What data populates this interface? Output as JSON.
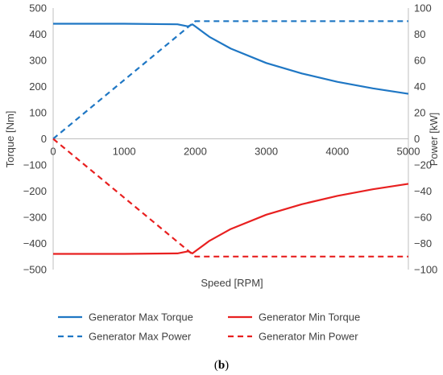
{
  "chart_data": {
    "type": "line",
    "xlabel": "Speed [RPM]",
    "ylabel_left": "Torque [Nm]",
    "ylabel_right": "Power [kW]",
    "xlim": [
      0,
      5000
    ],
    "ylim_left": [
      -500,
      500
    ],
    "ylim_right": [
      -100,
      100
    ],
    "x_ticks": [
      "0",
      "1000",
      "2000",
      "3000",
      "4000",
      "5000"
    ],
    "y_ticks_left": [
      "500",
      "400",
      "300",
      "200",
      "100",
      "0",
      "−100",
      "−200",
      "−300",
      "−400",
      "−500"
    ],
    "y_ticks_right": [
      "100",
      "80",
      "60",
      "40",
      "20",
      "0",
      "−20",
      "−40",
      "−60",
      "−80",
      "−100"
    ],
    "grid": false,
    "legend_placement": "bottom",
    "caption_open": "(",
    "caption_bold": "b",
    "caption_close": ")",
    "series": [
      {
        "name": "Generator Max Torque",
        "axis": "left",
        "color": "#1f77c4",
        "dash": "solid",
        "x": [
          0,
          1000,
          1750,
          1900,
          1960,
          2000,
          2200,
          2500,
          3000,
          3500,
          4000,
          4500,
          5000
        ],
        "y": [
          440,
          440,
          438,
          430,
          438,
          430,
          390,
          345,
          290,
          250,
          218,
          193,
          172
        ]
      },
      {
        "name": "Generator Min Torque",
        "axis": "left",
        "color": "#e82020",
        "dash": "solid",
        "x": [
          0,
          1000,
          1750,
          1900,
          1960,
          2000,
          2200,
          2500,
          3000,
          3500,
          4000,
          4500,
          5000
        ],
        "y": [
          -440,
          -440,
          -438,
          -430,
          -438,
          -430,
          -390,
          -345,
          -290,
          -250,
          -218,
          -193,
          -172
        ]
      },
      {
        "name": "Generator Max Power",
        "axis": "right",
        "color": "#1f77c4",
        "dash": "dashed",
        "x": [
          0,
          2000,
          5000
        ],
        "y": [
          0,
          90,
          90
        ]
      },
      {
        "name": "Generator Min Power",
        "axis": "right",
        "color": "#e82020",
        "dash": "dashed",
        "x": [
          0,
          2000,
          5000
        ],
        "y": [
          0,
          -90,
          -90
        ]
      }
    ]
  }
}
